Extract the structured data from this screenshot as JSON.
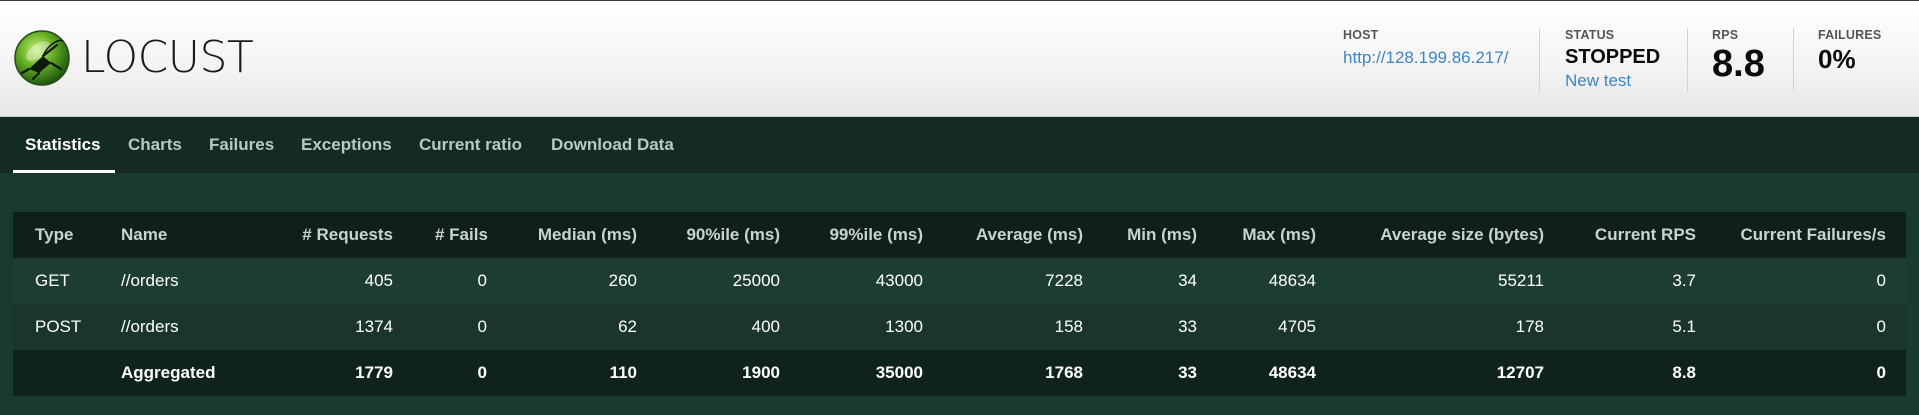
{
  "app": {
    "name": "LOCUST"
  },
  "header": {
    "host": {
      "label": "HOST",
      "value": "http://128.199.86.217/"
    },
    "status": {
      "label": "STATUS",
      "value": "STOPPED",
      "link": "New test"
    },
    "rps": {
      "label": "RPS",
      "value": "8.8"
    },
    "failures": {
      "label": "FAILURES",
      "value": "0%"
    }
  },
  "tabs": [
    {
      "label": "Statistics",
      "active": true
    },
    {
      "label": "Charts",
      "active": false
    },
    {
      "label": "Failures",
      "active": false
    },
    {
      "label": "Exceptions",
      "active": false
    },
    {
      "label": "Current ratio",
      "active": false
    },
    {
      "label": "Download Data",
      "active": false
    }
  ],
  "table": {
    "columns": [
      "Type",
      "Name",
      "# Requests",
      "# Fails",
      "Median (ms)",
      "90%ile (ms)",
      "99%ile (ms)",
      "Average (ms)",
      "Min (ms)",
      "Max (ms)",
      "Average size (bytes)",
      "Current RPS",
      "Current Failures/s"
    ],
    "rows": [
      [
        "GET",
        "//orders",
        "405",
        "0",
        "260",
        "25000",
        "43000",
        "7228",
        "34",
        "48634",
        "55211",
        "3.7",
        "0"
      ],
      [
        "POST",
        "//orders",
        "1374",
        "0",
        "62",
        "400",
        "1300",
        "158",
        "33",
        "4705",
        "178",
        "5.1",
        "0"
      ]
    ],
    "aggregated": [
      "",
      "Aggregated",
      "1779",
      "0",
      "110",
      "1900",
      "35000",
      "1768",
      "33",
      "48634",
      "12707",
      "8.8",
      "0"
    ]
  },
  "colors": {
    "background": "#1b3a2f",
    "tabbar": "#142b23",
    "link": "#3a86c8"
  }
}
